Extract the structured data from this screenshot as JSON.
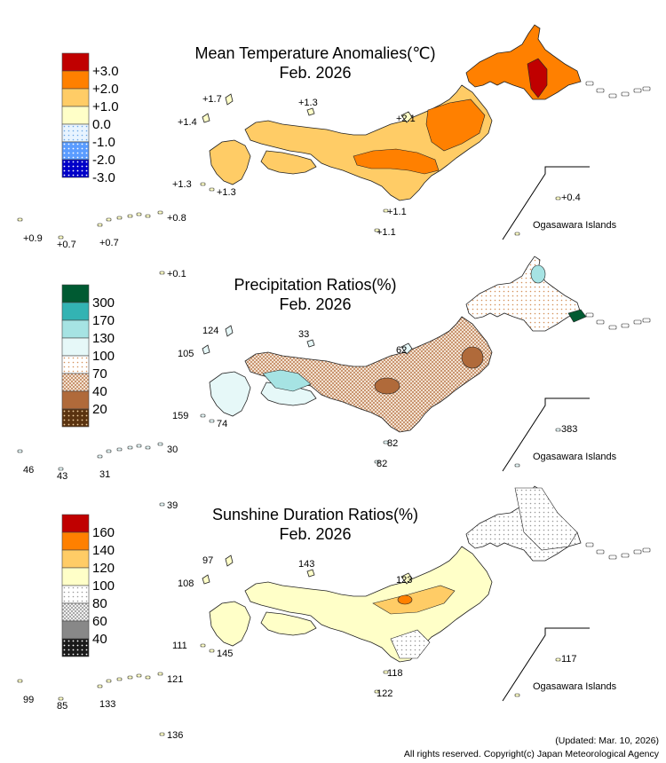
{
  "panels": [
    {
      "id": "temperature",
      "title": "Mean Temperature Anomalies(℃)",
      "period": "Feb. 2026",
      "legend": [
        {
          "label": "+3.0",
          "color": "#c00000",
          "pattern": "solid"
        },
        {
          "label": "+2.0",
          "color": "#ff8000",
          "pattern": "solid"
        },
        {
          "label": "+1.0",
          "color": "#ffcc66",
          "pattern": "solid"
        },
        {
          "label": "0.0",
          "color": "#ffffc8",
          "pattern": "solid"
        },
        {
          "label": "-1.0",
          "color": "#c8e6ff",
          "pattern": "dots-light"
        },
        {
          "label": "-2.0",
          "color": "#7ab4ff",
          "pattern": "dots"
        },
        {
          "label": "-3.0",
          "color": "#0000c8",
          "pattern": "dots-dark"
        }
      ],
      "stations": [
        "+1.7",
        "+1.4",
        "+1.3",
        "+2.1",
        "+1.3",
        "+1.3",
        "+1.1",
        "+1.1",
        "+0.8",
        "+0.9",
        "+0.7",
        "+0.7",
        "+0.1",
        "+0.4"
      ],
      "islands_label": "Ogasawara Islands"
    },
    {
      "id": "precipitation",
      "title": "Precipitation Ratios(%)",
      "period": "Feb. 2026",
      "legend": [
        {
          "label": "300",
          "color": "#005a32",
          "pattern": "solid"
        },
        {
          "label": "170",
          "color": "#33b3b3",
          "pattern": "solid"
        },
        {
          "label": "130",
          "color": "#a6e3e3",
          "pattern": "solid"
        },
        {
          "label": "100",
          "color": "#e6f8f8",
          "pattern": "solid"
        },
        {
          "label": "70",
          "color": "#ffffff",
          "pattern": "dots-brown-light"
        },
        {
          "label": "40",
          "color": "#e0c0a8",
          "pattern": "checker-brown"
        },
        {
          "label": "20",
          "color": "#b06a3a",
          "pattern": "solid"
        },
        {
          "label": "",
          "color": "#5a3310",
          "pattern": "dots-brown-dark"
        }
      ],
      "stations": [
        "124",
        "105",
        "159",
        "62",
        "33",
        "74",
        "82",
        "82",
        "30",
        "46",
        "43",
        "31",
        "39",
        "383"
      ],
      "islands_label": "Ogasawara Islands"
    },
    {
      "id": "sunshine",
      "title": "Sunshine Duration Ratios(%)",
      "period": "Feb. 2026",
      "legend": [
        {
          "label": "160",
          "color": "#c00000",
          "pattern": "solid"
        },
        {
          "label": "140",
          "color": "#ff8000",
          "pattern": "solid"
        },
        {
          "label": "120",
          "color": "#ffcc66",
          "pattern": "solid"
        },
        {
          "label": "100",
          "color": "#ffffc8",
          "pattern": "solid"
        },
        {
          "label": "80",
          "color": "#ffffff",
          "pattern": "dots-gray-light"
        },
        {
          "label": "60",
          "color": "#d0d0d0",
          "pattern": "checker-gray"
        },
        {
          "label": "40",
          "color": "#888888",
          "pattern": "solid"
        },
        {
          "label": "",
          "color": "#222222",
          "pattern": "dots-black"
        }
      ],
      "stations": [
        "97",
        "108",
        "111",
        "123",
        "143",
        "145",
        "118",
        "122",
        "121",
        "99",
        "85",
        "133",
        "136",
        "117"
      ],
      "islands_label": "Ogasawara Islands"
    }
  ],
  "footer": {
    "updated": "(Updated: Mar. 10, 2026)",
    "copyright": "All rights reserved. Copyright(c) Japan Meteorological Agency"
  }
}
